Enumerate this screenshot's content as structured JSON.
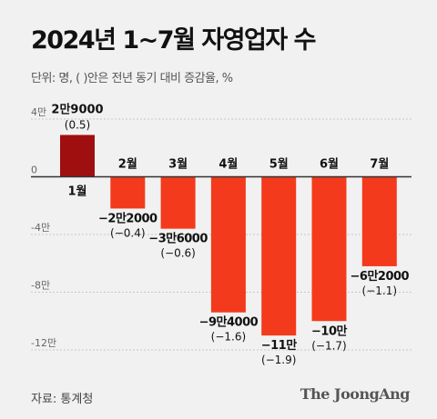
{
  "title": "2024년 1~7월 자영업자 수",
  "subtitle": "단위: 명, ( )안은 전년 동기 대비 증감율, %",
  "source": "자료: 통계청",
  "brand": "The JoongAng",
  "colors": {
    "positive_bar": "#a00f0f",
    "negative_bar": "#f43a1c",
    "axis": "#333333",
    "grid": "#c8c8c8",
    "background": "#f1f1f1"
  },
  "chart_data": {
    "type": "bar",
    "categories": [
      "1월",
      "2월",
      "3월",
      "4월",
      "5월",
      "6월",
      "7월"
    ],
    "values": [
      29000,
      -22000,
      -36000,
      -94000,
      -110000,
      -100000,
      -62000
    ],
    "value_labels": [
      "2만9000",
      "−2만2000",
      "−3만6000",
      "−9만4000",
      "−11만",
      "−10만",
      "−6만2000"
    ],
    "pct_labels": [
      "(0.5)",
      "(−0.4)",
      "(−0.6)",
      "(−1.6)",
      "(−1.9)",
      "(−1.7)",
      "(−1.1)"
    ],
    "y_ticks": [
      {
        "value": 40000,
        "label": "4만"
      },
      {
        "value": 0,
        "label": "0"
      },
      {
        "value": -40000,
        "label": "-4만"
      },
      {
        "value": -80000,
        "label": "-8만"
      },
      {
        "value": -120000,
        "label": "-12만"
      }
    ],
    "ylim": [
      -120000,
      40000
    ],
    "grid": true
  }
}
